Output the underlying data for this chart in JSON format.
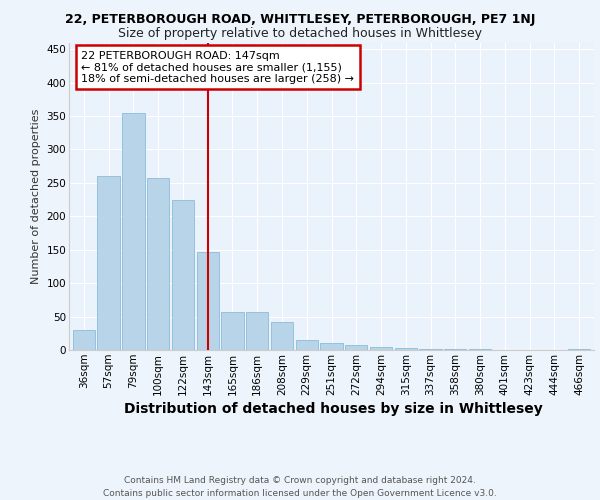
{
  "title_line1": "22, PETERBOROUGH ROAD, WHITTLESEY, PETERBOROUGH, PE7 1NJ",
  "title_line2": "Size of property relative to detached houses in Whittlesey",
  "xlabel": "Distribution of detached houses by size in Whittlesey",
  "ylabel": "Number of detached properties",
  "categories": [
    "36sqm",
    "57sqm",
    "79sqm",
    "100sqm",
    "122sqm",
    "143sqm",
    "165sqm",
    "186sqm",
    "208sqm",
    "229sqm",
    "251sqm",
    "272sqm",
    "294sqm",
    "315sqm",
    "337sqm",
    "358sqm",
    "380sqm",
    "401sqm",
    "423sqm",
    "444sqm",
    "466sqm"
  ],
  "values": [
    30,
    260,
    355,
    258,
    225,
    147,
    57,
    57,
    42,
    15,
    10,
    8,
    5,
    3,
    2,
    2,
    1,
    0,
    0,
    0,
    1
  ],
  "bar_color": "#b8d4e8",
  "bar_edge_color": "#7fb3d3",
  "highlight_index": 5,
  "highlight_color": "#cc0000",
  "annotation_text": "22 PETERBOROUGH ROAD: 147sqm\n← 81% of detached houses are smaller (1,155)\n18% of semi-detached houses are larger (258) →",
  "annotation_box_color": "#cc0000",
  "ylim": [
    0,
    460
  ],
  "yticks": [
    0,
    50,
    100,
    150,
    200,
    250,
    300,
    350,
    400,
    450
  ],
  "background_color": "#eaf2fb",
  "grid_color": "#ffffff",
  "footer_text": "Contains HM Land Registry data © Crown copyright and database right 2024.\nContains public sector information licensed under the Open Government Licence v3.0.",
  "title_fontsize": 9,
  "subtitle_fontsize": 9,
  "xlabel_fontsize": 10,
  "ylabel_fontsize": 8,
  "tick_fontsize": 7.5,
  "annotation_fontsize": 8,
  "footer_fontsize": 6.5
}
